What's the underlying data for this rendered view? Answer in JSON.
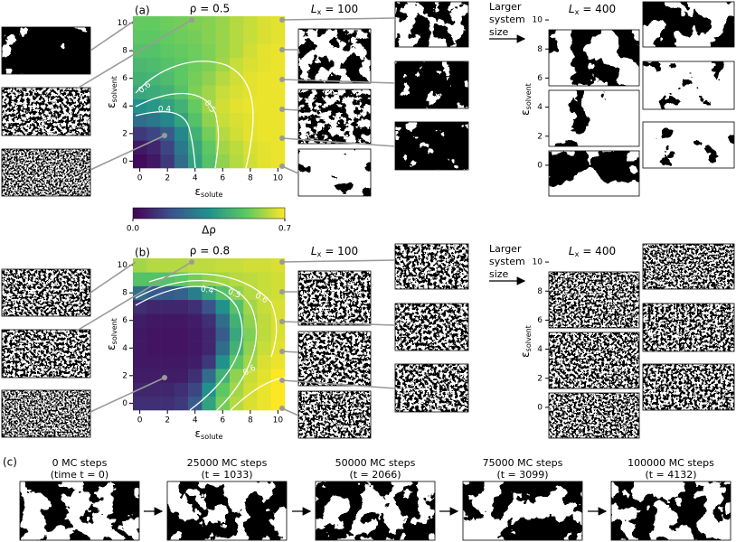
{
  "chart_data": [
    {
      "type": "heatmap",
      "panel_label": "(a)",
      "title": "ρ = 0.5",
      "xlabel": {
        "symbol": "ε",
        "subscript": "solute"
      },
      "ylabel": {
        "symbol": "ε",
        "subscript": "solvent"
      },
      "x": [
        0,
        1,
        2,
        3,
        4,
        5,
        6,
        7,
        8,
        9,
        10
      ],
      "y": [
        0,
        1,
        2,
        3,
        4,
        5,
        6,
        7,
        8,
        9,
        10
      ],
      "values": [
        [
          0.02,
          0.05,
          0.12,
          0.25,
          0.4,
          0.5,
          0.58,
          0.62,
          0.65,
          0.67,
          0.68
        ],
        [
          0.05,
          0.08,
          0.15,
          0.28,
          0.42,
          0.52,
          0.6,
          0.63,
          0.66,
          0.67,
          0.68
        ],
        [
          0.12,
          0.15,
          0.2,
          0.32,
          0.45,
          0.55,
          0.62,
          0.65,
          0.67,
          0.68,
          0.68
        ],
        [
          0.25,
          0.28,
          0.32,
          0.4,
          0.5,
          0.58,
          0.64,
          0.66,
          0.67,
          0.68,
          0.68
        ],
        [
          0.35,
          0.37,
          0.4,
          0.45,
          0.53,
          0.6,
          0.65,
          0.67,
          0.68,
          0.68,
          0.68
        ],
        [
          0.42,
          0.43,
          0.45,
          0.5,
          0.56,
          0.6,
          0.64,
          0.66,
          0.67,
          0.68,
          0.68
        ],
        [
          0.45,
          0.46,
          0.48,
          0.52,
          0.55,
          0.58,
          0.62,
          0.65,
          0.67,
          0.68,
          0.68
        ],
        [
          0.47,
          0.48,
          0.5,
          0.52,
          0.54,
          0.56,
          0.6,
          0.64,
          0.66,
          0.67,
          0.68
        ],
        [
          0.5,
          0.5,
          0.52,
          0.53,
          0.54,
          0.56,
          0.59,
          0.62,
          0.65,
          0.67,
          0.68
        ],
        [
          0.52,
          0.52,
          0.53,
          0.54,
          0.55,
          0.57,
          0.59,
          0.62,
          0.64,
          0.66,
          0.67
        ],
        [
          0.53,
          0.53,
          0.54,
          0.55,
          0.56,
          0.57,
          0.59,
          0.62,
          0.64,
          0.66,
          0.67
        ]
      ],
      "xlim": [
        -0.5,
        10.5
      ],
      "ylim": [
        -0.5,
        10.5
      ],
      "xticks": [
        0,
        2,
        4,
        6,
        8,
        10
      ],
      "yticks": [
        0,
        2,
        4,
        6,
        8,
        10
      ],
      "colormap": "viridis",
      "clim": [
        0,
        0.7
      ],
      "contour_labels": [
        0.6,
        0.4,
        0.5
      ],
      "colorbar": {
        "label": "Δρ",
        "ticks": [
          {
            "value": 0,
            "label": "0.0"
          },
          {
            "value": 0.7,
            "label": "0.7"
          }
        ]
      },
      "small_title": {
        "symbol": "L",
        "subscript": "x",
        "text": "= 100"
      },
      "large_title": {
        "symbol": "L",
        "subscript": "x",
        "text": "= 400"
      },
      "arrow_text": [
        "Larger",
        "system",
        "size"
      ],
      "large_ylabel": {
        "symbol": "ε",
        "subscript": "solvent"
      },
      "large_ylim": [
        -1,
        11
      ],
      "large_yticks": [
        0,
        2,
        4,
        6,
        8,
        10
      ]
    },
    {
      "type": "heatmap",
      "panel_label": "(b)",
      "title": "ρ = 0.8",
      "xlabel": {
        "symbol": "ε",
        "subscript": "solute"
      },
      "ylabel": {
        "symbol": "ε",
        "subscript": "solvent"
      },
      "x": [
        0,
        1,
        2,
        3,
        4,
        5,
        6,
        7,
        8,
        9,
        10
      ],
      "y": [
        0,
        1,
        2,
        3,
        4,
        5,
        6,
        7,
        8,
        9,
        10
      ],
      "values": [
        [
          0.1,
          0.1,
          0.1,
          0.12,
          0.2,
          0.4,
          0.55,
          0.62,
          0.66,
          0.68,
          0.7
        ],
        [
          0.08,
          0.08,
          0.08,
          0.1,
          0.15,
          0.35,
          0.52,
          0.6,
          0.65,
          0.68,
          0.7
        ],
        [
          0.06,
          0.06,
          0.06,
          0.06,
          0.1,
          0.25,
          0.45,
          0.58,
          0.64,
          0.67,
          0.7
        ],
        [
          0.05,
          0.05,
          0.05,
          0.05,
          0.06,
          0.12,
          0.35,
          0.52,
          0.6,
          0.66,
          0.68
        ],
        [
          0.05,
          0.04,
          0.04,
          0.04,
          0.05,
          0.08,
          0.25,
          0.45,
          0.58,
          0.64,
          0.67
        ],
        [
          0.05,
          0.04,
          0.04,
          0.04,
          0.05,
          0.08,
          0.2,
          0.42,
          0.56,
          0.63,
          0.66
        ],
        [
          0.06,
          0.05,
          0.05,
          0.05,
          0.06,
          0.1,
          0.25,
          0.45,
          0.58,
          0.63,
          0.66
        ],
        [
          0.1,
          0.08,
          0.08,
          0.08,
          0.1,
          0.18,
          0.35,
          0.5,
          0.6,
          0.64,
          0.66
        ],
        [
          0.25,
          0.2,
          0.2,
          0.22,
          0.3,
          0.4,
          0.5,
          0.58,
          0.62,
          0.64,
          0.65
        ],
        [
          0.5,
          0.5,
          0.5,
          0.52,
          0.55,
          0.58,
          0.6,
          0.62,
          0.63,
          0.64,
          0.65
        ],
        [
          0.6,
          0.62,
          0.62,
          0.62,
          0.63,
          0.63,
          0.64,
          0.64,
          0.65,
          0.65,
          0.66
        ]
      ],
      "xlim": [
        -0.5,
        10.5
      ],
      "ylim": [
        -0.5,
        10.5
      ],
      "xticks": [
        0,
        2,
        4,
        6,
        8,
        10
      ],
      "yticks": [
        0,
        2,
        4,
        6,
        8,
        10
      ],
      "colormap": "viridis",
      "clim": [
        0,
        0.7
      ],
      "contour_labels": [
        0.4,
        0.5,
        0.6,
        0.6
      ],
      "small_title": {
        "symbol": "L",
        "subscript": "x",
        "text": "= 100"
      },
      "large_title": {
        "symbol": "L",
        "subscript": "x",
        "text": "= 400"
      },
      "arrow_text": [
        "Larger",
        "system",
        "size"
      ],
      "large_ylabel": {
        "symbol": "ε",
        "subscript": "solvent"
      },
      "large_ylim": [
        -1,
        11
      ],
      "large_yticks": [
        0,
        2,
        4,
        6,
        8,
        10
      ]
    }
  ],
  "time_series": {
    "label": "(c)",
    "captions": [
      [
        "0 MC steps",
        "(time t = 0)"
      ],
      [
        "25000 MC steps",
        "(t = 1033)"
      ],
      [
        "50000 MC steps",
        "(t = 2066)"
      ],
      [
        "75000 MC steps",
        "(t = 3099)"
      ],
      [
        "100000 MC steps",
        "(t = 4132)"
      ]
    ]
  }
}
